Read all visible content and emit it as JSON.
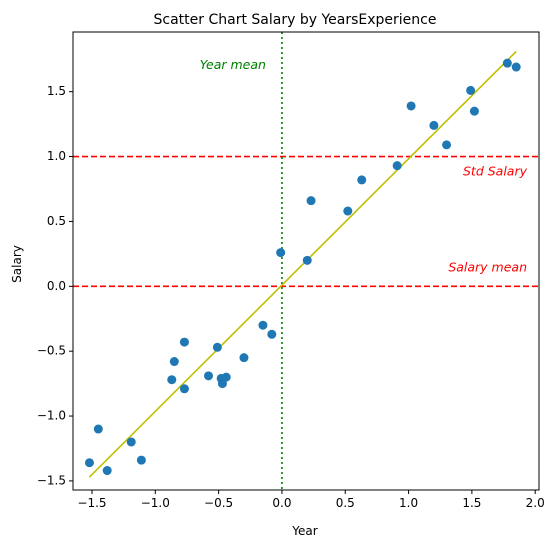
{
  "chart_data": {
    "type": "scatter",
    "title": "Scatter Chart Salary by YearsExperience",
    "xlabel": "Year",
    "ylabel": "Salary",
    "xlim": [
      -1.65,
      2.03
    ],
    "ylim": [
      -1.57,
      1.96
    ],
    "xticks": [
      -1.5,
      -1.0,
      -0.5,
      0.0,
      0.5,
      1.0,
      1.5,
      2.0
    ],
    "xtick_labels": [
      "−1.5",
      "−1.0",
      "−0.5",
      "0.0",
      "0.5",
      "1.0",
      "1.5",
      "2.0"
    ],
    "yticks": [
      -1.5,
      -1.0,
      -0.5,
      0.0,
      0.5,
      1.0,
      1.5
    ],
    "ytick_labels": [
      "−1.5",
      "−1.0",
      "−0.5",
      "0.0",
      "0.5",
      "1.0",
      "1.5"
    ],
    "grid": false,
    "points": [
      {
        "x": -1.52,
        "y": -1.36
      },
      {
        "x": -1.45,
        "y": -1.1
      },
      {
        "x": -1.38,
        "y": -1.42
      },
      {
        "x": -1.19,
        "y": -1.2
      },
      {
        "x": -1.11,
        "y": -1.34
      },
      {
        "x": -0.87,
        "y": -0.72
      },
      {
        "x": -0.85,
        "y": -0.58
      },
      {
        "x": -0.77,
        "y": -0.43
      },
      {
        "x": -0.77,
        "y": -0.79
      },
      {
        "x": -0.58,
        "y": -0.69
      },
      {
        "x": -0.51,
        "y": -0.47
      },
      {
        "x": -0.48,
        "y": -0.71
      },
      {
        "x": -0.47,
        "y": -0.75
      },
      {
        "x": -0.44,
        "y": -0.7
      },
      {
        "x": -0.3,
        "y": -0.55
      },
      {
        "x": -0.15,
        "y": -0.3
      },
      {
        "x": -0.08,
        "y": -0.37
      },
      {
        "x": -0.01,
        "y": 0.26
      },
      {
        "x": 0.2,
        "y": 0.2
      },
      {
        "x": 0.23,
        "y": 0.66
      },
      {
        "x": 0.52,
        "y": 0.58
      },
      {
        "x": 0.63,
        "y": 0.82
      },
      {
        "x": 0.91,
        "y": 0.93
      },
      {
        "x": 1.02,
        "y": 1.39
      },
      {
        "x": 1.2,
        "y": 1.24
      },
      {
        "x": 1.3,
        "y": 1.09
      },
      {
        "x": 1.49,
        "y": 1.51
      },
      {
        "x": 1.52,
        "y": 1.35
      },
      {
        "x": 1.78,
        "y": 1.72
      },
      {
        "x": 1.85,
        "y": 1.69
      }
    ],
    "regression_line": {
      "x": [
        -1.52,
        1.85
      ],
      "y": [
        -1.47,
        1.81
      ],
      "color": "#bfbf00"
    },
    "hlines": [
      {
        "y": 0.0,
        "label": "Salary mean",
        "color": "#ff0000",
        "style": "dashed"
      },
      {
        "y": 1.0,
        "label": "Std Salary",
        "color": "#ff0000",
        "style": "dashed"
      }
    ],
    "vlines": [
      {
        "x": 0.0,
        "label": "Year mean",
        "color": "#008000",
        "style": "dotted"
      }
    ],
    "colors": {
      "points": "#1f77b4"
    }
  }
}
